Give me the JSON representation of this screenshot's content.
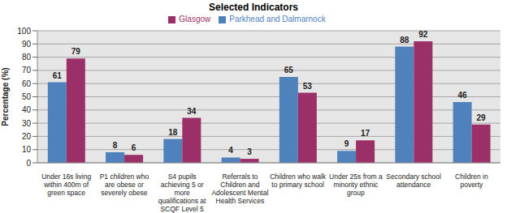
{
  "chart_data": {
    "type": "bar",
    "title": "Selected Indicators",
    "y_label": "Percentage (%)",
    "categories": [
      "Under 16s living within 400m of green space",
      "P1 children who are obese or severely obese",
      "S4 pupils achieving 5 or more qualifications at SCQF Level 5",
      "Referrals to Children and Adolescent Mental Health Services",
      "Children who walk to primary school",
      "Under 25s from a minority ethnic group",
      "Secondary school attendance",
      "Children in poverty"
    ],
    "series": [
      {
        "name": "Parkhead and Dalmarnock",
        "color": "#4f81bd",
        "values": [
          61,
          8,
          18,
          4,
          65,
          9,
          88,
          46
        ]
      },
      {
        "name": "Glasgow",
        "color": "#9b3068",
        "values": [
          79,
          6,
          34,
          3,
          53,
          17,
          92,
          29
        ]
      }
    ],
    "ylim": [
      0,
      100
    ],
    "yticks": [
      0,
      10,
      20,
      30,
      40,
      50,
      60,
      70,
      80,
      90,
      100
    ],
    "grid": true,
    "legend": "top",
    "data_labels": true
  }
}
